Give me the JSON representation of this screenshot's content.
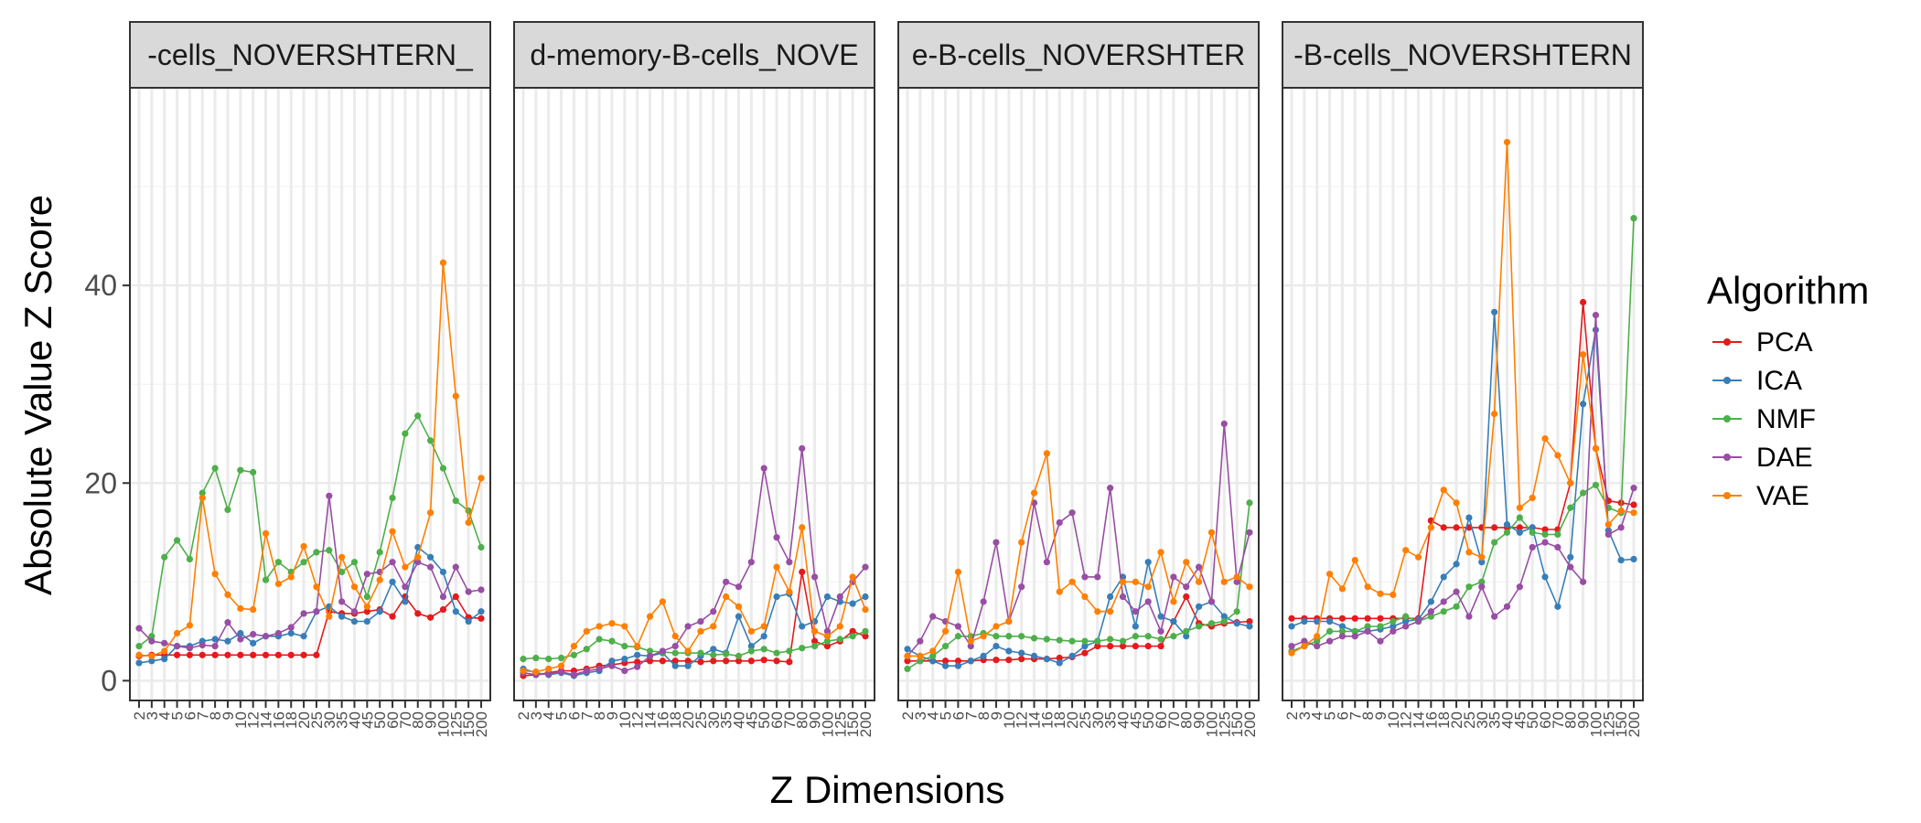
{
  "chart_data": {
    "type": "line",
    "xlabel": "Z Dimensions",
    "ylabel": "Absolute Value Z Score",
    "ylim": [
      -2,
      60
    ],
    "yticks": [
      0,
      20,
      40
    ],
    "grid": true,
    "legend": {
      "title": "Algorithm",
      "placement": "right"
    },
    "x": [
      "2",
      "3",
      "4",
      "5",
      "6",
      "7",
      "8",
      "9",
      "10",
      "12",
      "14",
      "16",
      "18",
      "20",
      "25",
      "30",
      "35",
      "40",
      "45",
      "50",
      "60",
      "70",
      "80",
      "90",
      "100",
      "125",
      "150",
      "200"
    ],
    "colors": {
      "PCA": "#E41A1C",
      "ICA": "#377EB8",
      "NMF": "#4DAF4A",
      "DAE": "#984EA3",
      "VAE": "#FF7F00"
    },
    "panels": [
      {
        "strip": "-cells_NOVERSHTERN_",
        "series": [
          {
            "name": "PCA",
            "values": [
              2.5,
              2.6,
              2.6,
              2.6,
              2.6,
              2.6,
              2.6,
              2.6,
              2.6,
              2.6,
              2.6,
              2.6,
              2.6,
              2.6,
              2.6,
              7.0,
              6.8,
              6.8,
              7.0,
              7.2,
              6.5,
              8.5,
              6.8,
              6.4,
              7.2,
              8.5,
              6.4,
              6.3
            ]
          },
          {
            "name": "ICA",
            "values": [
              1.8,
              2.0,
              2.2,
              3.5,
              3.5,
              4.0,
              4.2,
              4.0,
              4.8,
              3.8,
              4.5,
              4.5,
              4.8,
              4.5,
              7.0,
              7.5,
              6.5,
              6.0,
              6.0,
              7.0,
              10.0,
              8.0,
              13.5,
              12.5,
              11.0,
              7.0,
              6.0,
              7.0
            ]
          },
          {
            "name": "NMF",
            "values": [
              3.5,
              4.5,
              12.5,
              14.2,
              12.3,
              19.0,
              21.5,
              17.3,
              21.3,
              21.1,
              10.2,
              12.0,
              11.0,
              12.0,
              13.0,
              13.2,
              11.0,
              12.0,
              8.5,
              13.0,
              18.5,
              25.0,
              26.8,
              24.3,
              21.5,
              18.2,
              17.2,
              13.5
            ]
          },
          {
            "name": "DAE",
            "values": [
              5.3,
              4.0,
              3.8,
              3.5,
              3.3,
              3.6,
              3.5,
              5.9,
              4.2,
              4.7,
              4.5,
              4.8,
              5.4,
              6.8,
              7.0,
              18.7,
              8.0,
              7.0,
              10.8,
              11.0,
              12.0,
              9.5,
              12.0,
              11.5,
              8.5,
              11.5,
              9.0,
              9.2
            ]
          },
          {
            "name": "VAE",
            "values": [
              2.6,
              2.5,
              3.0,
              4.8,
              5.6,
              18.5,
              10.8,
              8.7,
              7.3,
              7.2,
              14.9,
              9.8,
              10.5,
              13.6,
              9.5,
              6.5,
              12.5,
              9.5,
              7.5,
              10.2,
              15.1,
              11.5,
              12.5,
              17.0,
              42.3,
              28.8,
              16.0,
              20.5
            ]
          }
        ]
      },
      {
        "strip": "d-memory-B-cells_NOVE",
        "series": [
          {
            "name": "PCA",
            "values": [
              0.5,
              0.6,
              0.8,
              1.0,
              1.0,
              1.2,
              1.5,
              1.6,
              1.8,
              1.9,
              2.0,
              2.0,
              2.0,
              2.0,
              1.9,
              2.0,
              2.0,
              2.0,
              2.0,
              2.1,
              2.0,
              1.9,
              11.0,
              4.0,
              3.5,
              4.0,
              5.0,
              4.5
            ]
          },
          {
            "name": "ICA",
            "values": [
              1.2,
              0.8,
              0.6,
              0.8,
              0.5,
              0.8,
              1.0,
              2.0,
              2.2,
              2.6,
              2.5,
              2.8,
              1.5,
              1.5,
              2.5,
              3.2,
              2.8,
              6.5,
              3.5,
              4.5,
              8.5,
              8.8,
              5.5,
              6.0,
              8.5,
              8.0,
              7.8,
              8.5
            ]
          },
          {
            "name": "NMF",
            "values": [
              2.2,
              2.3,
              2.2,
              2.3,
              2.6,
              3.2,
              4.2,
              4.0,
              3.5,
              3.4,
              3.0,
              2.9,
              2.8,
              2.8,
              2.8,
              2.6,
              2.7,
              2.5,
              3.0,
              3.2,
              2.8,
              3.0,
              3.3,
              3.5,
              4.0,
              4.2,
              4.5,
              5.0
            ]
          },
          {
            "name": "DAE",
            "values": [
              0.8,
              0.6,
              0.7,
              0.9,
              0.6,
              1.0,
              1.2,
              1.5,
              1.0,
              1.4,
              2.5,
              3.0,
              3.5,
              5.5,
              6.0,
              7.0,
              10.0,
              9.5,
              12.0,
              21.5,
              14.5,
              12.0,
              23.5,
              10.5,
              5.0,
              8.5,
              10.0,
              11.5
            ]
          },
          {
            "name": "VAE",
            "values": [
              1.0,
              0.9,
              1.2,
              1.5,
              3.5,
              5.0,
              5.5,
              5.8,
              5.5,
              3.5,
              6.5,
              8.0,
              4.5,
              3.0,
              5.0,
              5.5,
              8.5,
              7.5,
              5.0,
              5.5,
              11.5,
              9.0,
              15.5,
              5.0,
              4.5,
              5.5,
              10.5,
              7.2
            ]
          }
        ]
      },
      {
        "strip": "e-B-cells_NOVERSHTER",
        "series": [
          {
            "name": "PCA",
            "values": [
              2.0,
              2.0,
              2.0,
              2.0,
              2.0,
              2.0,
              2.1,
              2.1,
              2.1,
              2.2,
              2.2,
              2.2,
              2.3,
              2.4,
              2.8,
              3.5,
              3.5,
              3.5,
              3.5,
              3.5,
              3.5,
              6.0,
              8.5,
              5.8,
              5.5,
              5.8,
              5.9,
              6.0
            ]
          },
          {
            "name": "ICA",
            "values": [
              3.2,
              2.5,
              2.0,
              1.5,
              1.5,
              2.0,
              2.5,
              3.5,
              3.0,
              2.8,
              2.5,
              2.2,
              1.8,
              2.5,
              3.5,
              4.0,
              8.5,
              10.5,
              5.5,
              12.0,
              6.5,
              6.0,
              4.5,
              7.5,
              8.0,
              6.5,
              5.8,
              5.5
            ]
          },
          {
            "name": "NMF",
            "values": [
              1.2,
              2.0,
              2.5,
              3.5,
              4.5,
              4.5,
              4.8,
              4.5,
              4.5,
              4.5,
              4.3,
              4.2,
              4.1,
              4.0,
              4.0,
              4.0,
              4.2,
              4.0,
              4.5,
              4.5,
              4.2,
              4.5,
              5.0,
              5.5,
              5.8,
              6.0,
              7.0,
              18.0
            ]
          },
          {
            "name": "DAE",
            "values": [
              2.5,
              4.0,
              6.5,
              6.0,
              5.5,
              3.5,
              8.0,
              14.0,
              6.0,
              9.5,
              18.0,
              12.0,
              16.0,
              17.0,
              10.5,
              10.5,
              19.5,
              8.5,
              7.0,
              8.0,
              5.0,
              10.5,
              9.5,
              11.5,
              8.0,
              26.0,
              10.0,
              15.0
            ]
          },
          {
            "name": "VAE",
            "values": [
              2.5,
              2.5,
              3.0,
              5.0,
              11.0,
              4.0,
              4.5,
              5.5,
              6.0,
              14.0,
              19.0,
              23.0,
              9.0,
              10.0,
              8.5,
              7.0,
              7.0,
              10.0,
              10.0,
              9.5,
              13.0,
              8.0,
              12.0,
              10.0,
              15.0,
              10.0,
              10.5,
              9.5
            ]
          }
        ]
      },
      {
        "strip": "-B-cells_NOVERSHTERN",
        "series": [
          {
            "name": "PCA",
            "values": [
              6.3,
              6.3,
              6.3,
              6.3,
              6.3,
              6.3,
              6.3,
              6.3,
              6.3,
              6.3,
              6.3,
              16.2,
              15.5,
              15.5,
              15.5,
              15.5,
              15.5,
              15.5,
              15.5,
              15.5,
              15.3,
              15.3,
              20.0,
              38.3,
              23.5,
              18.2,
              18.0,
              17.8
            ]
          },
          {
            "name": "ICA",
            "values": [
              5.5,
              6.0,
              6.0,
              6.0,
              5.5,
              5.0,
              5.0,
              5.2,
              5.5,
              6.0,
              6.2,
              8.0,
              10.5,
              11.8,
              16.5,
              12.0,
              37.3,
              15.8,
              15.0,
              15.5,
              10.5,
              7.5,
              12.5,
              28.0,
              35.5,
              15.2,
              12.2,
              12.3
            ]
          },
          {
            "name": "NMF",
            "values": [
              3.0,
              3.5,
              4.0,
              5.0,
              5.0,
              5.0,
              5.5,
              5.5,
              6.0,
              6.5,
              6.0,
              6.5,
              7.0,
              7.5,
              9.5,
              10.0,
              14.0,
              15.0,
              16.5,
              15.0,
              14.8,
              14.8,
              17.5,
              19.0,
              19.8,
              17.5,
              17.0,
              46.8
            ]
          },
          {
            "name": "DAE",
            "values": [
              3.5,
              4.0,
              3.5,
              4.0,
              4.5,
              4.5,
              5.0,
              4.0,
              5.0,
              5.5,
              6.0,
              7.0,
              8.0,
              9.0,
              6.5,
              9.5,
              6.5,
              7.5,
              9.5,
              13.5,
              14.0,
              13.5,
              11.5,
              10.0,
              37.0,
              14.8,
              15.5,
              19.5
            ]
          },
          {
            "name": "VAE",
            "values": [
              2.8,
              3.5,
              4.5,
              10.8,
              9.3,
              12.2,
              9.5,
              8.8,
              8.7,
              13.2,
              12.5,
              15.5,
              19.3,
              18.0,
              13.0,
              12.5,
              27.0,
              54.5,
              17.5,
              18.5,
              24.5,
              22.8,
              20.0,
              33.0,
              23.5,
              15.8,
              17.2,
              17.0
            ]
          }
        ]
      }
    ]
  }
}
